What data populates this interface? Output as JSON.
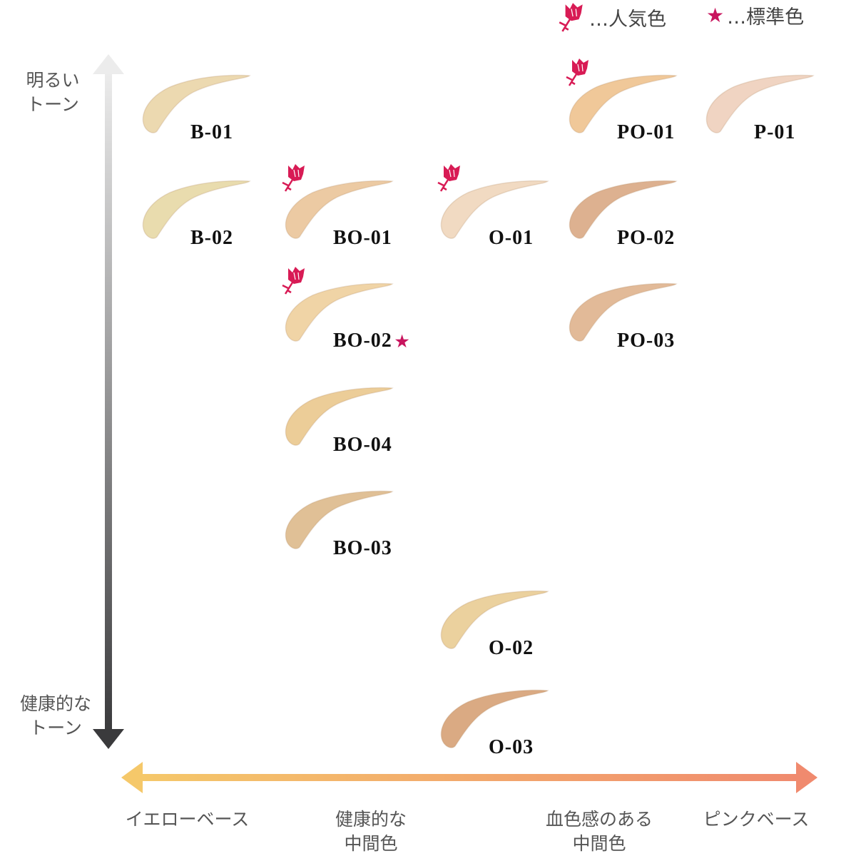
{
  "legend": {
    "popular_icon": "rose-icon",
    "popular_label": "…人気色",
    "standard_icon": "star-icon",
    "standard_label": "…標準色",
    "accent": "#d81b55"
  },
  "y_axis": {
    "top_label": [
      "明るい",
      "トーン"
    ],
    "bottom_label": [
      "健康的な",
      "トーン"
    ]
  },
  "x_axis": {
    "labels": [
      [
        "イエローベース"
      ],
      [
        "健康的な",
        "中間色"
      ],
      [
        "血色感のある",
        "中間色"
      ],
      [
        "ピンクベース"
      ]
    ],
    "start_color": "#f5c86a",
    "end_color": "#f08a6e"
  },
  "shades": [
    {
      "name": "B-01",
      "color": "#ecd9b0",
      "col": 0,
      "row": 0,
      "popular": false,
      "standard": false
    },
    {
      "name": "PO-01",
      "color": "#f0c899",
      "col": 3,
      "row": 0,
      "popular": true,
      "standard": false
    },
    {
      "name": "P-01",
      "color": "#f0d4c2",
      "col": 4,
      "row": 0,
      "popular": false,
      "standard": false
    },
    {
      "name": "B-02",
      "color": "#e9dcae",
      "col": 0,
      "row": 1,
      "popular": false,
      "standard": false
    },
    {
      "name": "BO-01",
      "color": "#ecca a3",
      "col": 1,
      "row": 1,
      "popular": true,
      "standard": false
    },
    {
      "name": "O-01",
      "color": "#f1dac2",
      "col": 2,
      "row": 1,
      "popular": true,
      "standard": false
    },
    {
      "name": "PO-02",
      "color": "#ddb190",
      "col": 3,
      "row": 1,
      "popular": false,
      "standard": false
    },
    {
      "name": "BO-02",
      "color": "#f0d4a6",
      "col": 1,
      "row": 2,
      "popular": true,
      "standard": true
    },
    {
      "name": "PO-03",
      "color": "#e2ba98",
      "col": 3,
      "row": 2,
      "popular": false,
      "standard": false
    },
    {
      "name": "BO-04",
      "color": "#eccd98",
      "col": 1,
      "row": 3,
      "popular": false,
      "standard": false
    },
    {
      "name": "BO-03",
      "color": "#e0c096",
      "col": 1,
      "row": 4,
      "popular": false,
      "standard": false
    },
    {
      "name": "O-02",
      "color": "#ebd19e",
      "col": 2,
      "row": 5,
      "popular": false,
      "standard": false
    },
    {
      "name": "O-03",
      "color": "#daaa83",
      "col": 2,
      "row": 6,
      "popular": false,
      "standard": false
    }
  ]
}
